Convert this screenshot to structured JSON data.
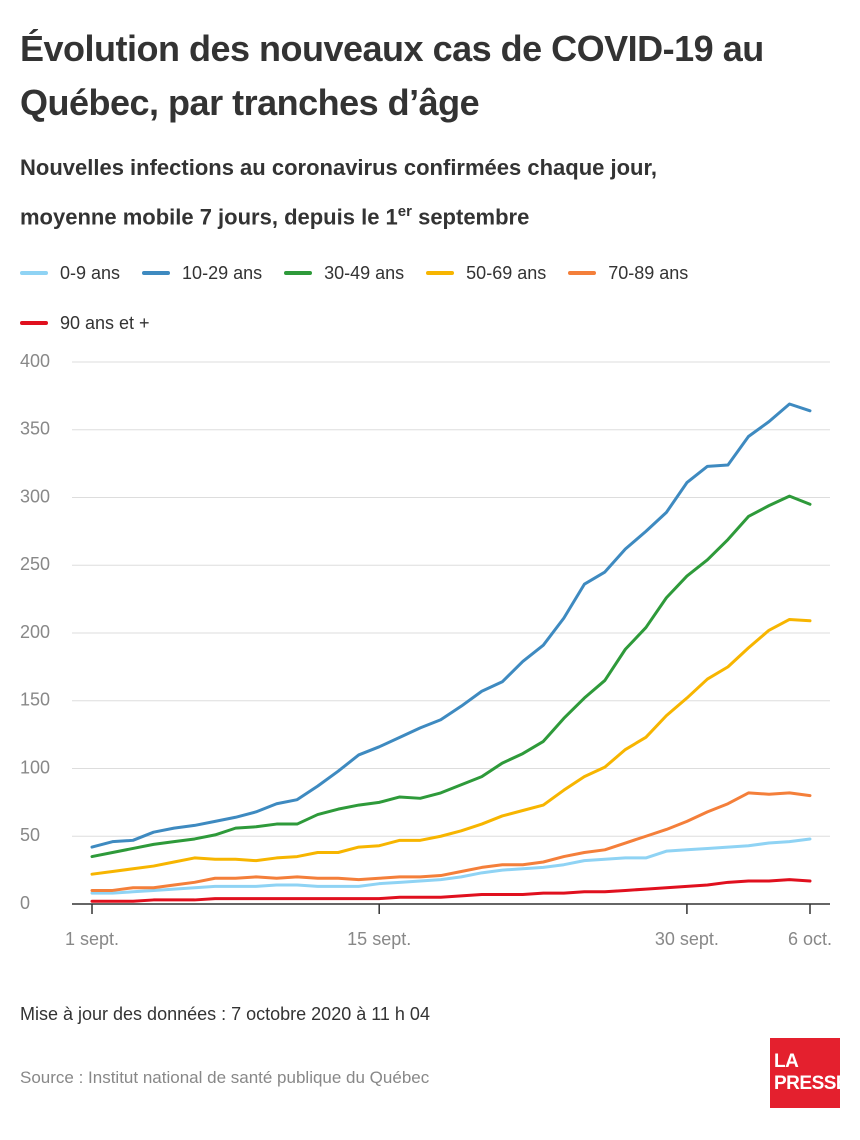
{
  "chart_data": {
    "type": "line",
    "title": "Évolution des nouveaux cas de COVID-19 au Québec, par tranches d’âge",
    "subtitle": [
      "Nouvelles infections au coronavirus confirmées chaque jour,",
      "moyenne mobile 7 jours, depuis le 1",
      "er",
      " septembre"
    ],
    "categories": [
      "1 sept.",
      null,
      null,
      null,
      null,
      null,
      null,
      null,
      null,
      null,
      null,
      null,
      null,
      null,
      "15 sept.",
      null,
      null,
      null,
      null,
      null,
      null,
      null,
      null,
      null,
      null,
      null,
      null,
      null,
      null,
      "30 sept.",
      null,
      null,
      null,
      null,
      null,
      "6 oct."
    ],
    "series": [
      {
        "name": "0-9 ans",
        "color": "#8fd3f4",
        "values": [
          8,
          8,
          9,
          10,
          11,
          12,
          13,
          13,
          13,
          14,
          14,
          13,
          13,
          13,
          15,
          16,
          17,
          18,
          20,
          23,
          25,
          26,
          27,
          29,
          32,
          33,
          34,
          34,
          39,
          40,
          41,
          42,
          43,
          45,
          46,
          48
        ]
      },
      {
        "name": "10-29 ans",
        "color": "#3e8ac0",
        "values": [
          42,
          46,
          47,
          53,
          56,
          58,
          61,
          64,
          68,
          74,
          77,
          87,
          98,
          110,
          116,
          123,
          130,
          136,
          146,
          157,
          164,
          179,
          191,
          211,
          236,
          245,
          262,
          275,
          289,
          311,
          323,
          324,
          345,
          356,
          369,
          364
        ]
      },
      {
        "name": "30-49 ans",
        "color": "#2e9a3a",
        "values": [
          35,
          38,
          41,
          44,
          46,
          48,
          51,
          56,
          57,
          59,
          59,
          66,
          70,
          73,
          75,
          79,
          78,
          82,
          88,
          94,
          104,
          111,
          120,
          137,
          152,
          165,
          188,
          204,
          226,
          242,
          254,
          269,
          286,
          294,
          301,
          295
        ]
      },
      {
        "name": "50-69 ans",
        "color": "#f7b500",
        "values": [
          22,
          24,
          26,
          28,
          31,
          34,
          33,
          33,
          32,
          34,
          35,
          38,
          38,
          42,
          43,
          47,
          47,
          50,
          54,
          59,
          65,
          69,
          73,
          84,
          94,
          101,
          114,
          123,
          139,
          152,
          166,
          175,
          189,
          202,
          210,
          209
        ]
      },
      {
        "name": "70-89 ans",
        "color": "#f47f3a",
        "values": [
          10,
          10,
          12,
          12,
          14,
          16,
          19,
          19,
          20,
          19,
          20,
          19,
          19,
          18,
          19,
          20,
          20,
          21,
          24,
          27,
          29,
          29,
          31,
          35,
          38,
          40,
          45,
          50,
          55,
          61,
          68,
          74,
          82,
          81,
          82,
          80
        ]
      },
      {
        "name": "90 ans et +",
        "color": "#e0101e",
        "values": [
          2,
          2,
          2,
          3,
          3,
          3,
          4,
          4,
          4,
          4,
          4,
          4,
          4,
          4,
          4,
          5,
          5,
          5,
          6,
          7,
          7,
          7,
          8,
          8,
          9,
          9,
          10,
          11,
          12,
          13,
          14,
          16,
          17,
          17,
          18,
          17
        ]
      }
    ],
    "ylim": [
      0,
      400
    ],
    "yticks": [
      0,
      50,
      100,
      150,
      200,
      250,
      300,
      350,
      400
    ],
    "grid": true,
    "note": "Mise à jour des données : 7 octobre 2020 à 11 h 04",
    "source": "Source : Institut national de santé publique du Québec",
    "logo": [
      "LA",
      "PRESSE"
    ]
  }
}
